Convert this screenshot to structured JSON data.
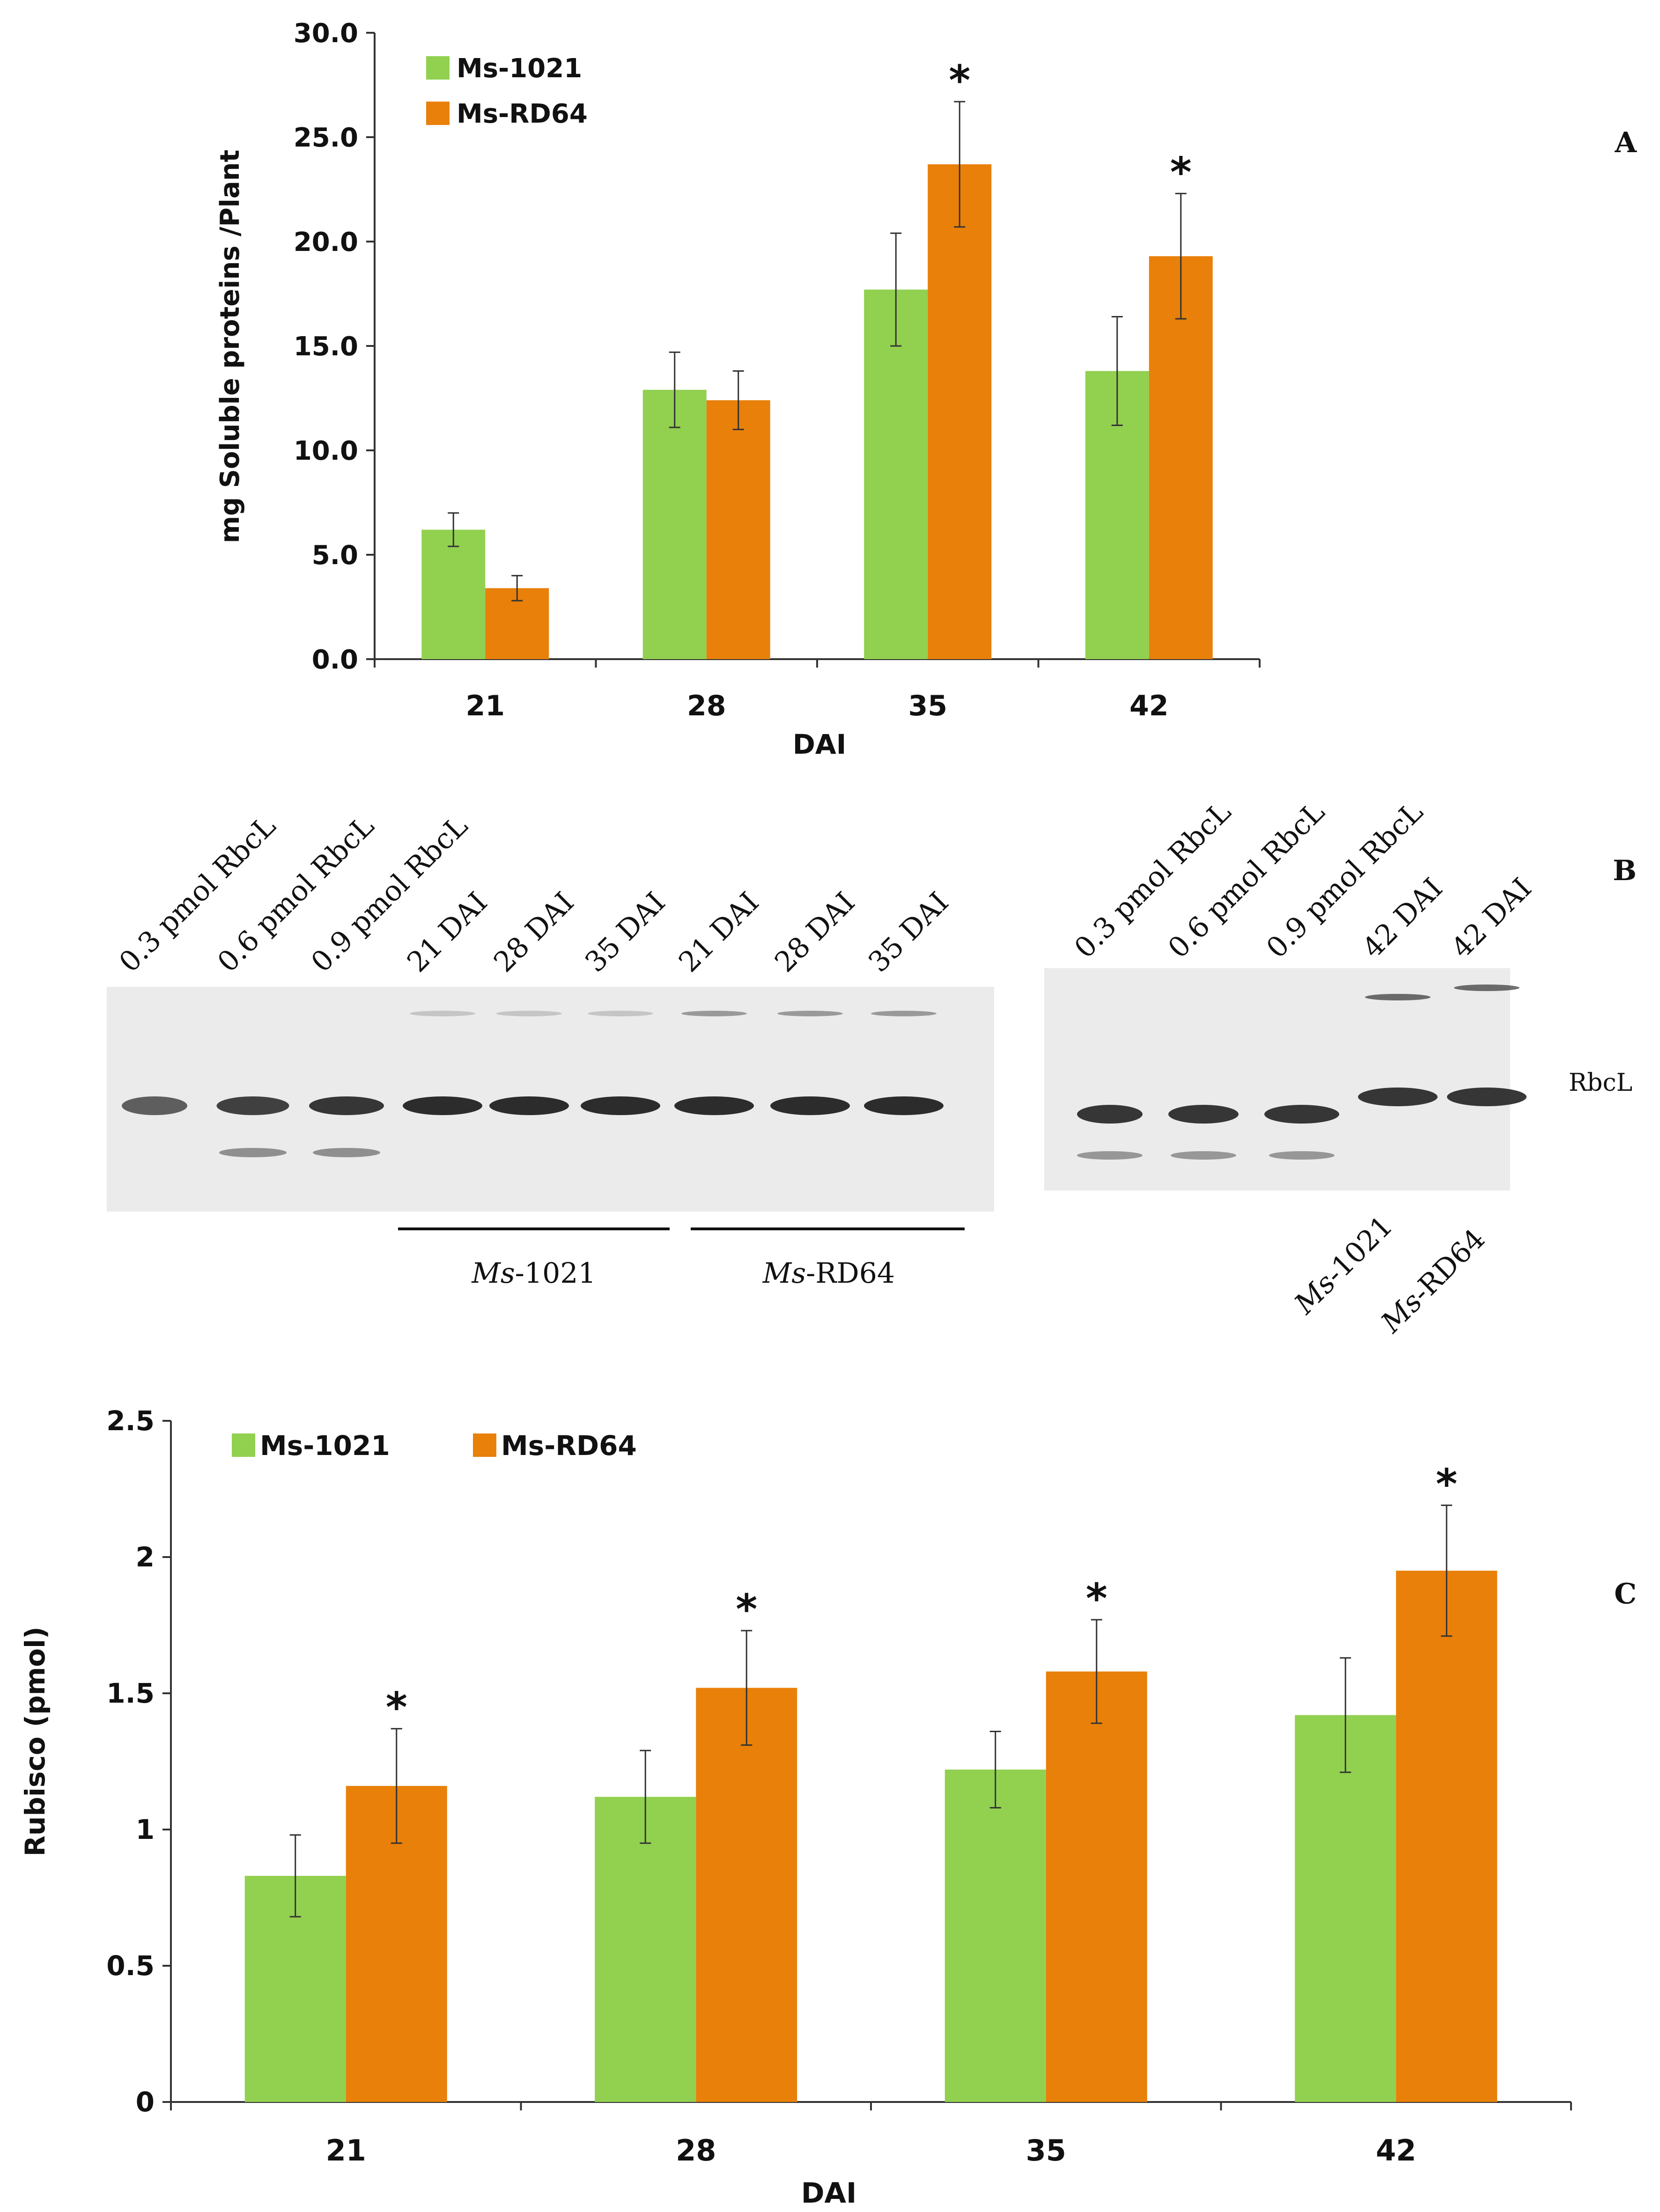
{
  "chart_data": [
    {
      "panel": "A",
      "type": "bar",
      "categories": [
        "21",
        "28",
        "35",
        "42"
      ],
      "series": [
        {
          "name": "Ms-1021",
          "values": [
            6.2,
            12.9,
            17.7,
            13.8
          ],
          "errors": [
            0.8,
            1.8,
            2.7,
            2.6
          ],
          "significant": [
            false,
            false,
            false,
            false
          ]
        },
        {
          "name": "Ms-RD64",
          "values": [
            3.4,
            12.4,
            23.7,
            19.3
          ],
          "errors": [
            0.6,
            1.4,
            3.0,
            3.0
          ],
          "significant": [
            false,
            false,
            true,
            true
          ]
        }
      ],
      "yticks": [
        "0.0",
        "5.0",
        "10.0",
        "15.0",
        "20.0",
        "25.0",
        "30.0"
      ],
      "ylim": [
        0,
        30
      ],
      "xlabel": "DAI",
      "ylabel": "mg Soluble proteins /Plant",
      "legend": "top-left",
      "grid": false
    },
    {
      "panel": "C",
      "type": "bar",
      "categories": [
        "21",
        "28",
        "35",
        "42"
      ],
      "series": [
        {
          "name": "Ms-1021",
          "values": [
            0.83,
            1.12,
            1.22,
            1.42
          ],
          "errors": [
            0.15,
            0.17,
            0.14,
            0.21
          ],
          "significant": [
            false,
            false,
            false,
            false
          ]
        },
        {
          "name": "Ms-RD64",
          "values": [
            1.16,
            1.52,
            1.58,
            1.95
          ],
          "errors": [
            0.21,
            0.21,
            0.19,
            0.24
          ],
          "significant": [
            true,
            true,
            true,
            true
          ]
        }
      ],
      "yticks": [
        "0",
        "0.5",
        "1",
        "1.5",
        "2",
        "2.5"
      ],
      "ylim": [
        0,
        2.5
      ],
      "xlabel": "DAI",
      "ylabel": "Rubisco (pmol)",
      "legend": "top-left",
      "grid": false
    }
  ],
  "colors": {
    "ms1021": "#92d050",
    "msrd64": "#e8800a"
  },
  "significance_marker": "*",
  "panel_labels": {
    "a": "A",
    "b": "B",
    "c": "C"
  },
  "blot": {
    "left_lanes": [
      "0.3 pmol RbcL",
      "0.6 pmol RbcL",
      "0.9 pmol RbcL",
      "21 DAI",
      "28 DAI",
      "35 DAI",
      "21 DAI",
      "28 DAI",
      "35 DAI"
    ],
    "right_lanes": [
      "0.3 pmol RbcL",
      "0.6 pmol RbcL",
      "0.9 pmol RbcL",
      "42 DAI",
      "42 DAI"
    ],
    "band_label": "RbcL",
    "group_1_prefix": "Ms",
    "group_1_suffix": "-1021",
    "group_2_prefix": "Ms",
    "group_2_suffix": "-RD64",
    "right_group_1_prefix": "Ms",
    "right_group_1_suffix": "-1021",
    "right_group_2_prefix": "Ms",
    "right_group_2_suffix": "-RD64"
  }
}
